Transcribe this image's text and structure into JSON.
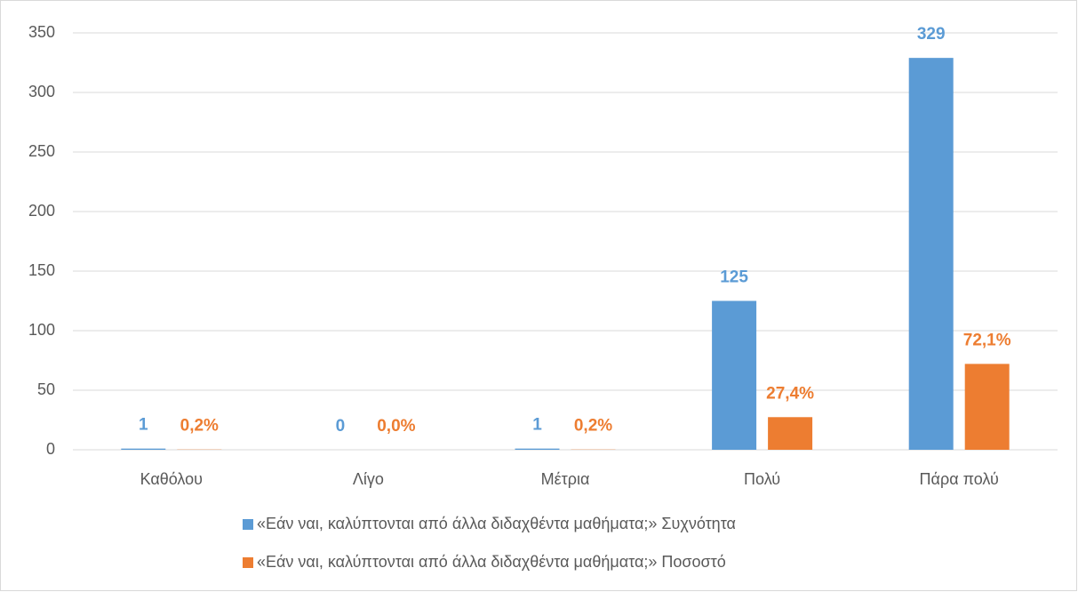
{
  "chart_data": {
    "type": "bar",
    "categories": [
      "Καθόλου",
      "Λίγο",
      "Μέτρια",
      "Πολύ",
      "Πάρα πολύ"
    ],
    "series": [
      {
        "name": "«Εάν ναι, καλύπτονται από άλλα διδαχθέντα μαθήματα;» Συχνότητα",
        "color": "#5b9bd5",
        "values": [
          1,
          0,
          1,
          125,
          329
        ]
      },
      {
        "name": "«Εάν ναι, καλύπτονται από άλλα διδαχθέντα μαθήματα;» Ποσοστό",
        "color": "#ed7d31",
        "values": [
          0.2,
          0.0,
          0.2,
          27.4,
          72.1
        ],
        "value_labels": [
          "0,2%",
          "0,0%",
          "0,2%",
          "27,4%",
          "72,1%"
        ]
      }
    ],
    "ylim": [
      0,
      350
    ],
    "yticks": [
      0,
      50,
      100,
      150,
      200,
      250,
      300,
      350
    ],
    "grid": true,
    "legend": "bottom"
  }
}
